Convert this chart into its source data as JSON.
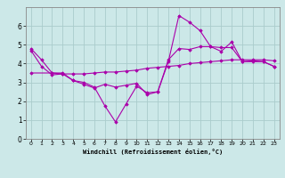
{
  "xlabel": "Windchill (Refroidissement éolien,°C)",
  "background_color": "#cce8e8",
  "grid_color": "#aacccc",
  "line_color": "#aa00aa",
  "xlim": [
    -0.5,
    23.5
  ],
  "ylim": [
    0,
    7
  ],
  "yticks": [
    0,
    1,
    2,
    3,
    4,
    5,
    6
  ],
  "xticks": [
    0,
    1,
    2,
    3,
    4,
    5,
    6,
    7,
    8,
    9,
    10,
    11,
    12,
    13,
    14,
    15,
    16,
    17,
    18,
    19,
    20,
    21,
    22,
    23
  ],
  "line1_x": [
    0,
    1,
    2,
    3,
    4,
    5,
    6,
    7,
    8,
    9,
    10,
    11,
    12,
    13,
    14,
    15,
    16,
    17,
    18,
    19,
    20,
    21,
    22,
    23
  ],
  "line1_y": [
    4.8,
    4.2,
    3.5,
    3.5,
    3.1,
    2.9,
    2.7,
    2.9,
    2.75,
    2.85,
    2.95,
    2.35,
    2.5,
    4.1,
    6.55,
    6.2,
    5.75,
    4.9,
    4.65,
    5.15,
    4.1,
    4.15,
    4.1,
    3.85
  ],
  "line2_x": [
    0,
    1,
    2,
    3,
    4,
    5,
    6,
    7,
    8,
    9,
    10,
    11,
    12,
    13,
    14,
    15,
    16,
    17,
    18,
    19,
    20,
    21,
    22,
    23
  ],
  "line2_y": [
    4.7,
    3.85,
    3.4,
    3.45,
    3.45,
    3.45,
    3.5,
    3.55,
    3.55,
    3.6,
    3.65,
    3.75,
    3.8,
    3.85,
    3.9,
    4.0,
    4.05,
    4.1,
    4.15,
    4.2,
    4.2,
    4.2,
    4.2,
    4.15
  ],
  "line3_x": [
    0,
    2,
    3,
    4,
    5,
    6,
    7,
    8,
    9,
    10,
    11,
    12,
    13,
    14,
    15,
    16,
    17,
    18,
    19,
    20,
    21,
    22,
    23
  ],
  "line3_y": [
    3.5,
    3.5,
    3.45,
    3.1,
    3.0,
    2.75,
    1.75,
    0.9,
    1.85,
    2.8,
    2.45,
    2.5,
    4.2,
    4.8,
    4.75,
    4.9,
    4.9,
    4.85,
    4.85,
    4.1,
    4.1,
    4.1,
    3.85
  ]
}
